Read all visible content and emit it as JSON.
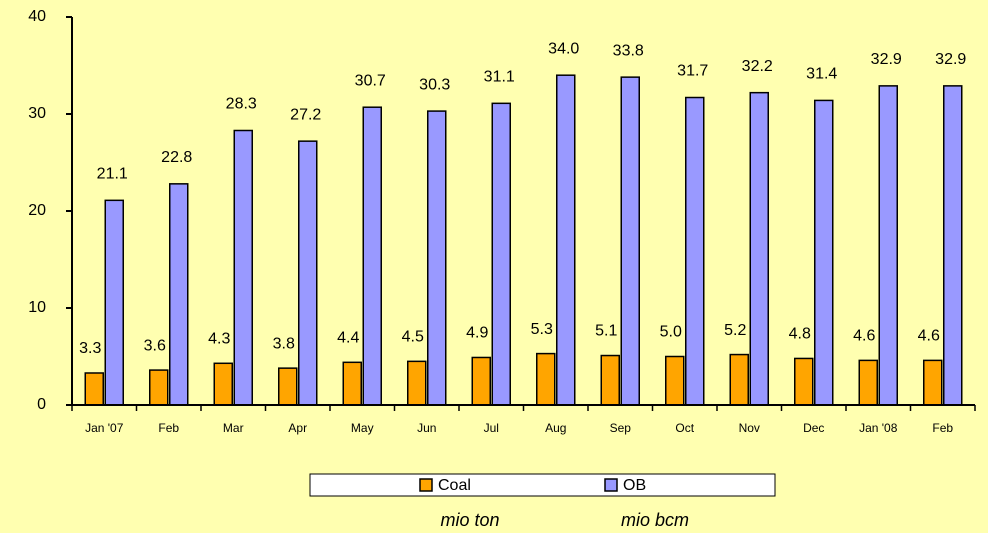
{
  "chart_data": {
    "type": "bar",
    "categories": [
      "Jan '07",
      "Feb",
      "Mar",
      "Apr",
      "May",
      "Jun",
      "Jul",
      "Aug",
      "Sep",
      "Oct",
      "Nov",
      "Dec",
      "Jan '08",
      "Feb"
    ],
    "series": [
      {
        "name": "Coal",
        "color": "#ffa500",
        "values": [
          3.3,
          3.6,
          4.3,
          3.8,
          4.4,
          4.5,
          4.9,
          5.3,
          5.1,
          5.0,
          5.2,
          4.8,
          4.6,
          4.6
        ],
        "value_labels": [
          "3.3",
          "3.6",
          "4.3",
          "3.8",
          "4.4",
          "4.5",
          "4.9",
          "5.3",
          "5.1",
          "5.0",
          "5.2",
          "4.8",
          "4.6",
          "4.6"
        ]
      },
      {
        "name": "OB",
        "color": "#9999ff",
        "values": [
          21.1,
          22.8,
          28.3,
          27.2,
          30.7,
          30.3,
          31.1,
          34.0,
          33.8,
          31.7,
          32.2,
          31.4,
          32.9,
          32.9
        ],
        "value_labels": [
          "21.1",
          "22.8",
          "28.3",
          "27.2",
          "30.7",
          "30.3",
          "31.1",
          "34.0",
          "33.8",
          "31.7",
          "32.2",
          "31.4",
          "32.9",
          "32.9"
        ]
      }
    ],
    "ylim": [
      0,
      40
    ],
    "yticks": [
      0,
      10,
      20,
      30,
      40
    ],
    "grid": false,
    "legend": "bottom",
    "annotations": [
      "mio ton",
      "mio bcm"
    ]
  }
}
